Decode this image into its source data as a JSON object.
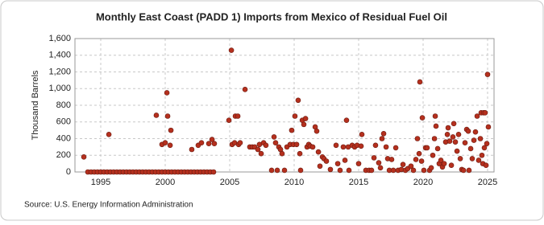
{
  "chart_data": {
    "type": "scatter",
    "title": "Monthly East Coast (PADD 1) Imports from Mexico of Residual Fuel Oil",
    "y_label": "Thousand Barrels",
    "source": "Source: U.S. Energy Information Administration",
    "xlim": [
      1993,
      2025.5
    ],
    "xticks": [
      1995,
      2000,
      2005,
      2010,
      2015,
      2020,
      2025
    ],
    "ylim": [
      0,
      1600
    ],
    "yticks": [
      0,
      {
        "value": 200,
        "label": "200"
      },
      {
        "value": 400,
        "label": "400"
      },
      {
        "value": 600,
        "label": "600"
      },
      {
        "value": 800,
        "label": "800"
      },
      {
        "value": 1000,
        "label": "1,000"
      },
      {
        "value": 1200,
        "label": "1,200"
      },
      {
        "value": 1400,
        "label": "1,400"
      },
      {
        "value": 1600,
        "label": "1,600"
      }
    ],
    "grid": true,
    "series": [
      {
        "color": "#b5301e",
        "x": [
          1993.69,
          1995.63,
          1994.0,
          1994.25,
          1994.5,
          1994.75,
          1995.0,
          1995.25,
          1995.5,
          1995.75,
          1996.0,
          1996.25,
          1996.5,
          1996.75,
          1997.0,
          1997.25,
          1997.5,
          1997.75,
          1998.0,
          1998.25,
          1998.5,
          1998.75,
          1999.0,
          1999.25,
          1999.5,
          1999.75,
          2000.0,
          2000.25,
          2000.5,
          2000.75,
          2001.0,
          2001.25,
          2001.5,
          2001.75,
          2002.0,
          2002.25,
          2002.5,
          2002.75,
          2003.0,
          2003.25,
          2003.5,
          2003.75,
          1999.31,
          1999.75,
          2000.0,
          2000.13,
          2000.19,
          2000.38,
          2000.44,
          2002.06,
          2002.56,
          2002.81,
          2003.38,
          2003.63,
          2003.81,
          2004.94,
          2005.13,
          2005.19,
          2005.38,
          2005.44,
          2005.63,
          2005.69,
          2005.81,
          2006.19,
          2006.56,
          2006.75,
          2006.94,
          2007.19,
          2007.31,
          2007.44,
          2007.63,
          2007.81,
          2008.25,
          2008.44,
          2008.56,
          2008.69,
          2008.81,
          2008.94,
          2009.06,
          2009.25,
          2009.44,
          2009.69,
          2009.81,
          2009.94,
          2010.06,
          2010.19,
          2010.31,
          2010.44,
          2010.5,
          2010.63,
          2010.75,
          2010.88,
          2011.0,
          2011.13,
          2011.25,
          2011.44,
          2011.63,
          2011.75,
          2011.88,
          2012.0,
          2012.19,
          2012.31,
          2012.5,
          2012.81,
          2013.25,
          2013.38,
          2013.56,
          2013.81,
          2013.94,
          2014.06,
          2014.19,
          2014.25,
          2014.5,
          2014.69,
          2014.88,
          2015.0,
          2015.19,
          2015.25,
          2015.56,
          2015.81,
          2016.0,
          2016.19,
          2016.31,
          2016.56,
          2016.69,
          2016.81,
          2016.94,
          2017.13,
          2017.25,
          2017.38,
          2017.56,
          2017.69,
          2017.88,
          2018.06,
          2018.31,
          2018.44,
          2018.63,
          2018.81,
          2019.06,
          2019.25,
          2019.44,
          2019.56,
          2019.69,
          2019.75,
          2019.88,
          2019.94,
          2020.06,
          2020.19,
          2020.31,
          2020.5,
          2020.63,
          2020.75,
          2020.88,
          2020.94,
          2021.0,
          2021.13,
          2021.25,
          2021.38,
          2021.5,
          2021.63,
          2021.75,
          2021.88,
          2021.94,
          2022.06,
          2022.19,
          2022.31,
          2022.38,
          2022.5,
          2022.63,
          2022.75,
          2022.88,
          2023.0,
          2023.13,
          2023.25,
          2023.38,
          2023.5,
          2023.56,
          2023.69,
          2023.81,
          2023.94,
          2024.06,
          2024.19,
          2024.31,
          2024.44,
          2024.5,
          2024.56,
          2024.63,
          2024.69,
          2024.75,
          2024.81,
          2024.88,
          2024.94,
          2025.0,
          2025.06
        ],
        "values": [
          180,
          450,
          0,
          0,
          0,
          0,
          0,
          0,
          0,
          0,
          0,
          0,
          0,
          0,
          0,
          0,
          0,
          0,
          0,
          0,
          0,
          0,
          0,
          0,
          0,
          0,
          0,
          0,
          0,
          0,
          0,
          0,
          0,
          0,
          0,
          0,
          0,
          0,
          0,
          0,
          0,
          0,
          680,
          330,
          350,
          950,
          670,
          320,
          500,
          270,
          320,
          350,
          340,
          390,
          340,
          620,
          1460,
          330,
          350,
          670,
          670,
          330,
          350,
          990,
          300,
          300,
          300,
          270,
          330,
          220,
          350,
          320,
          20,
          420,
          350,
          20,
          300,
          270,
          220,
          20,
          300,
          330,
          500,
          330,
          670,
          330,
          860,
          220,
          20,
          620,
          570,
          640,
          300,
          330,
          310,
          300,
          540,
          490,
          240,
          70,
          180,
          160,
          130,
          30,
          320,
          100,
          20,
          300,
          140,
          620,
          300,
          20,
          320,
          300,
          320,
          100,
          310,
          450,
          20,
          20,
          20,
          170,
          320,
          110,
          50,
          400,
          460,
          300,
          160,
          20,
          150,
          20,
          290,
          20,
          30,
          90,
          20,
          40,
          70,
          20,
          150,
          400,
          220,
          1080,
          130,
          650,
          20,
          290,
          290,
          20,
          50,
          200,
          400,
          670,
          550,
          280,
          100,
          140,
          60,
          100,
          360,
          450,
          530,
          370,
          80,
          420,
          580,
          360,
          250,
          450,
          160,
          30,
          20,
          350,
          510,
          490,
          20,
          280,
          160,
          380,
          480,
          670,
          140,
          400,
          710,
          200,
          100,
          710,
          290,
          710,
          80,
          340,
          1170,
          540
        ]
      }
    ]
  }
}
